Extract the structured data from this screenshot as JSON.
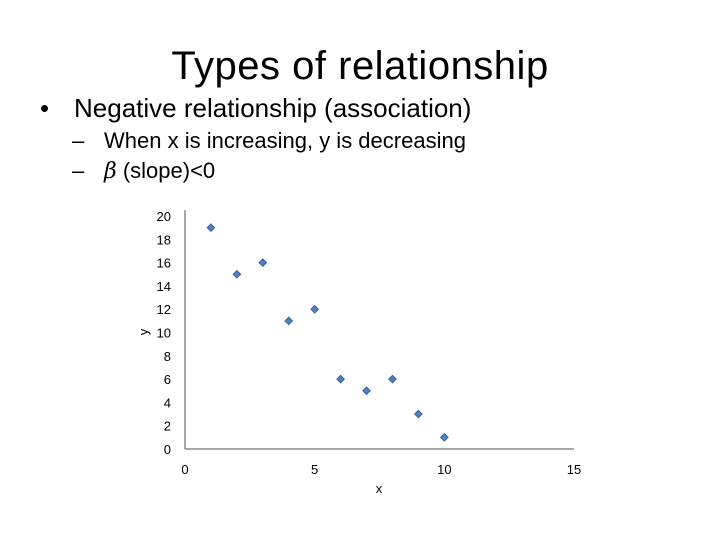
{
  "slide": {
    "title": "Types of relationship",
    "bullet_marker": "•",
    "bullet": "Negative relationship (association)",
    "sub_marker": "–",
    "sub_bullets": [
      {
        "text": "When x is increasing, y is decreasing"
      },
      {
        "symbol": "β",
        "text": " (slope)<0"
      }
    ]
  },
  "chart_data": {
    "type": "scatter",
    "title": "",
    "xlabel": "x",
    "ylabel": "y",
    "xlim": [
      0,
      15
    ],
    "ylim": [
      0,
      20
    ],
    "xticks": [
      0,
      5,
      10,
      15
    ],
    "yticks": [
      0,
      2,
      4,
      6,
      8,
      10,
      12,
      14,
      16,
      18,
      20
    ],
    "grid": false,
    "legend": "none",
    "marker_color": "#4f81bd",
    "series": [
      {
        "x": [
          1,
          2,
          3,
          4,
          5,
          6,
          7,
          8,
          9,
          10
        ],
        "y": [
          19,
          15,
          16,
          11,
          12,
          6,
          5,
          6,
          3,
          1
        ]
      }
    ]
  }
}
